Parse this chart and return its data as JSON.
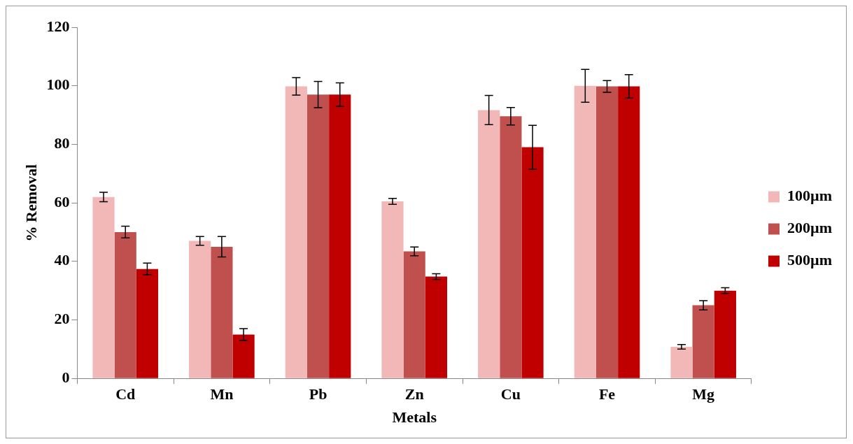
{
  "chart_data": {
    "type": "bar",
    "xlabel": "Metals",
    "ylabel": "% Removal",
    "categories": [
      "Cd",
      "Mn",
      "Pb",
      "Zn",
      "Cu",
      "Fe",
      "Mg"
    ],
    "series": [
      {
        "name": "100µm",
        "color": "#f2b8b8",
        "values": [
          62,
          47,
          99.8,
          60.5,
          91.7,
          100,
          10.8
        ],
        "errors": [
          1.6,
          1.5,
          3,
          1,
          5,
          5.6,
          0.8
        ]
      },
      {
        "name": "200µm",
        "color": "#c0504d",
        "values": [
          50,
          45,
          97,
          43.4,
          89.6,
          99.8,
          25
        ],
        "errors": [
          2,
          3.5,
          4.5,
          1.5,
          3,
          2,
          1.6
        ]
      },
      {
        "name": "500µm",
        "color": "#c00000",
        "values": [
          37.4,
          15,
          97,
          34.8,
          79,
          99.8,
          30
        ],
        "errors": [
          2,
          2,
          4,
          1,
          7.5,
          4,
          1
        ]
      }
    ],
    "ylim": [
      0,
      120
    ],
    "yticks": [
      0,
      20,
      40,
      60,
      80,
      100,
      120
    ],
    "grid": false,
    "legend": "right"
  }
}
